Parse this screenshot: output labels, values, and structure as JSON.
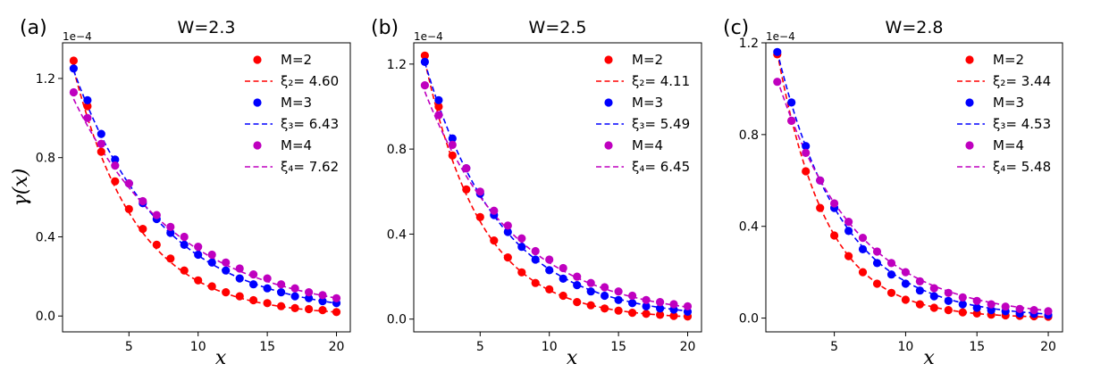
{
  "chart_data": [
    {
      "type": "scatter",
      "panel_label": "(a)",
      "title": "W=2.3",
      "xlabel": "x",
      "ylabel": "γ(x)",
      "scale_label": "1e−4",
      "xlim": [
        0.2,
        21.0
      ],
      "ylim": [
        -0.08,
        1.38
      ],
      "xticks": [
        5,
        10,
        15,
        20
      ],
      "xtick_labels": [
        "5",
        "10",
        "15",
        "20"
      ],
      "yticks": [
        0.0,
        0.4,
        0.8,
        1.2
      ],
      "ytick_labels": [
        "0.0",
        "0.4",
        "0.8",
        "1.2"
      ],
      "x": [
        1,
        2,
        3,
        4,
        5,
        6,
        7,
        8,
        9,
        10,
        11,
        12,
        13,
        14,
        15,
        16,
        17,
        18,
        19,
        20
      ],
      "series": [
        {
          "name": "M=2",
          "fit_label": "ξ₂= 4.60",
          "color": "#ff0000",
          "A": 1.55,
          "xi": 4.6,
          "values": [
            1.29,
            1.06,
            0.83,
            0.68,
            0.54,
            0.44,
            0.36,
            0.29,
            0.23,
            0.18,
            0.15,
            0.12,
            0.1,
            0.08,
            0.065,
            0.05,
            0.04,
            0.035,
            0.03,
            0.02
          ]
        },
        {
          "name": "M=3",
          "fit_label": "ξ₃= 6.43",
          "color": "#0000ff",
          "A": 1.45,
          "xi": 6.43,
          "values": [
            1.25,
            1.09,
            0.92,
            0.79,
            0.67,
            0.57,
            0.49,
            0.42,
            0.36,
            0.31,
            0.27,
            0.23,
            0.19,
            0.16,
            0.14,
            0.12,
            0.1,
            0.09,
            0.075,
            0.065
          ]
        },
        {
          "name": "M=4",
          "fit_label": "ξ₄= 7.62",
          "color": "#bf00bf",
          "A": 1.25,
          "xi": 7.62,
          "values": [
            1.13,
            1.0,
            0.87,
            0.76,
            0.67,
            0.58,
            0.51,
            0.45,
            0.4,
            0.35,
            0.31,
            0.27,
            0.24,
            0.21,
            0.19,
            0.16,
            0.14,
            0.12,
            0.105,
            0.09
          ]
        }
      ]
    },
    {
      "type": "scatter",
      "panel_label": "(b)",
      "title": "W=2.5",
      "xlabel": "x",
      "ylabel": "",
      "scale_label": "1e−4",
      "xlim": [
        0.2,
        21.0
      ],
      "ylim": [
        -0.06,
        1.3
      ],
      "xticks": [
        5,
        10,
        15,
        20
      ],
      "xtick_labels": [
        "5",
        "10",
        "15",
        "20"
      ],
      "yticks": [
        0.0,
        0.4,
        0.8,
        1.2
      ],
      "ytick_labels": [
        "0.0",
        "0.4",
        "0.8",
        "1.2"
      ],
      "x": [
        1,
        2,
        3,
        4,
        5,
        6,
        7,
        8,
        9,
        10,
        11,
        12,
        13,
        14,
        15,
        16,
        17,
        18,
        19,
        20
      ],
      "series": [
        {
          "name": "M=2",
          "fit_label": "ξ₂= 4.11",
          "color": "#ff0000",
          "A": 1.55,
          "xi": 4.11,
          "values": [
            1.24,
            1.0,
            0.77,
            0.61,
            0.48,
            0.37,
            0.29,
            0.22,
            0.17,
            0.14,
            0.11,
            0.08,
            0.065,
            0.05,
            0.04,
            0.03,
            0.025,
            0.02,
            0.015,
            0.012
          ]
        },
        {
          "name": "M=3",
          "fit_label": "ξ₃= 5.49",
          "color": "#0000ff",
          "A": 1.45,
          "xi": 5.49,
          "values": [
            1.21,
            1.03,
            0.85,
            0.71,
            0.59,
            0.49,
            0.41,
            0.34,
            0.28,
            0.23,
            0.19,
            0.16,
            0.13,
            0.11,
            0.09,
            0.075,
            0.06,
            0.05,
            0.045,
            0.035
          ]
        },
        {
          "name": "M=4",
          "fit_label": "ξ₄= 6.45",
          "color": "#bf00bf",
          "A": 1.25,
          "xi": 6.45,
          "values": [
            1.1,
            0.96,
            0.82,
            0.71,
            0.6,
            0.51,
            0.44,
            0.38,
            0.32,
            0.28,
            0.24,
            0.2,
            0.17,
            0.15,
            0.13,
            0.11,
            0.09,
            0.08,
            0.07,
            0.06
          ]
        }
      ]
    },
    {
      "type": "scatter",
      "panel_label": "(c)",
      "title": "W=2.8",
      "xlabel": "x",
      "ylabel": "",
      "scale_label": "1e−4",
      "xlim": [
        0.2,
        21.0
      ],
      "ylim": [
        -0.06,
        1.2
      ],
      "xticks": [
        5,
        10,
        15,
        20
      ],
      "xtick_labels": [
        "5",
        "10",
        "15",
        "20"
      ],
      "yticks": [
        0.0,
        0.4,
        0.8,
        1.2
      ],
      "ytick_labels": [
        "0.0",
        "0.4",
        "0.8",
        "1.2"
      ],
      "x": [
        1,
        2,
        3,
        4,
        5,
        6,
        7,
        8,
        9,
        10,
        11,
        12,
        13,
        14,
        15,
        16,
        17,
        18,
        19,
        20
      ],
      "series": [
        {
          "name": "M=2",
          "fit_label": "ξ₂= 3.44",
          "color": "#ff0000",
          "A": 1.55,
          "xi": 3.44,
          "values": [
            1.15,
            0.86,
            0.64,
            0.48,
            0.36,
            0.27,
            0.2,
            0.15,
            0.11,
            0.08,
            0.06,
            0.045,
            0.035,
            0.025,
            0.02,
            0.015,
            0.012,
            0.01,
            0.008,
            0.006
          ]
        },
        {
          "name": "M=3",
          "fit_label": "ξ₃= 4.53",
          "color": "#0000ff",
          "A": 1.45,
          "xi": 4.53,
          "values": [
            1.16,
            0.94,
            0.75,
            0.6,
            0.48,
            0.38,
            0.3,
            0.24,
            0.19,
            0.15,
            0.12,
            0.095,
            0.075,
            0.06,
            0.045,
            0.035,
            0.03,
            0.02,
            0.018,
            0.014
          ]
        },
        {
          "name": "M=4",
          "fit_label": "ξ₄= 5.48",
          "color": "#bf00bf",
          "A": 1.25,
          "xi": 5.48,
          "values": [
            1.03,
            0.86,
            0.72,
            0.6,
            0.5,
            0.42,
            0.35,
            0.29,
            0.24,
            0.2,
            0.16,
            0.13,
            0.11,
            0.09,
            0.075,
            0.06,
            0.05,
            0.04,
            0.035,
            0.03
          ]
        }
      ]
    }
  ]
}
